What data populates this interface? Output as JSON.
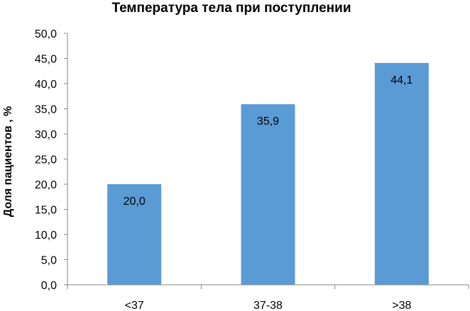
{
  "chart_data": {
    "type": "bar",
    "title": "Температура тела при поступлении",
    "xlabel": "",
    "ylabel": "Доля пациентов , %",
    "categories": [
      "<37",
      "37-38",
      ">38"
    ],
    "values": [
      20.0,
      35.9,
      44.1
    ],
    "value_labels": [
      "20,0",
      "35,9",
      "44,1"
    ],
    "ylim": [
      0,
      50
    ],
    "yticks": [
      "0,0",
      "5,0",
      "10,0",
      "15,0",
      "20,0",
      "25,0",
      "30,0",
      "35,0",
      "40,0",
      "45,0",
      "50,0"
    ],
    "grid": false,
    "bar_color": "#5B9BD5"
  }
}
